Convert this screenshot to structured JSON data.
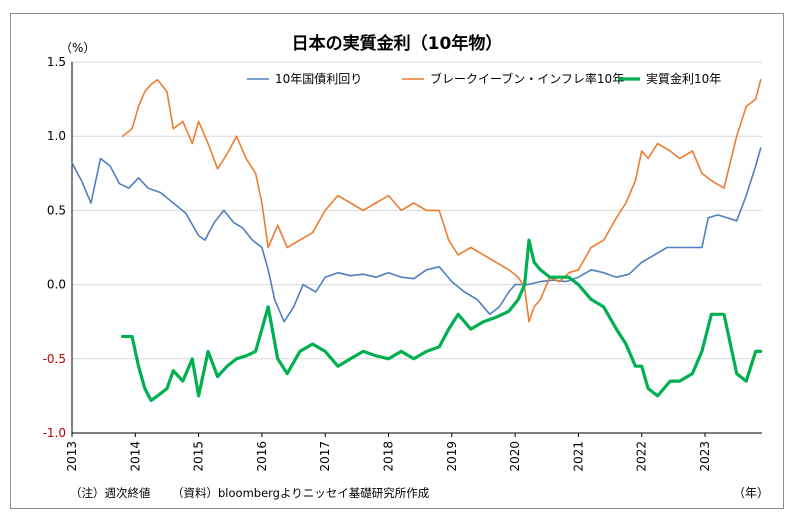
{
  "chart_data": {
    "type": "line",
    "title": "日本の実質金利（10年物）",
    "ylabel": "（%）",
    "xlabel": "（年）",
    "ylim": [
      -1.0,
      1.5
    ],
    "yticks": [
      "1.5",
      "1.0",
      "0.5",
      "0.0",
      "-0.5",
      "-1.0"
    ],
    "ytick_values": [
      1.5,
      1.0,
      0.5,
      0.0,
      -0.5,
      -1.0
    ],
    "xlim": [
      2013.0,
      2023.9
    ],
    "xticks": [
      "2013",
      "2014",
      "2015",
      "2016",
      "2017",
      "2018",
      "2019",
      "2020",
      "2021",
      "2022",
      "2023"
    ],
    "grid": "horizontal",
    "legend_position": "top",
    "series": [
      {
        "name": "10年国債利回り",
        "color": "#4f7fbf",
        "x": [
          2013.0,
          2013.15,
          2013.3,
          2013.45,
          2013.6,
          2013.75,
          2013.9,
          2014.05,
          2014.2,
          2014.4,
          2014.6,
          2014.8,
          2015.0,
          2015.1,
          2015.25,
          2015.4,
          2015.55,
          2015.7,
          2015.85,
          2016.0,
          2016.1,
          2016.2,
          2016.35,
          2016.5,
          2016.65,
          2016.85,
          2017.0,
          2017.2,
          2017.4,
          2017.6,
          2017.8,
          2018.0,
          2018.2,
          2018.4,
          2018.6,
          2018.8,
          2019.0,
          2019.2,
          2019.4,
          2019.6,
          2019.75,
          2019.9,
          2020.0,
          2020.2,
          2020.4,
          2020.6,
          2020.8,
          2021.0,
          2021.2,
          2021.4,
          2021.6,
          2021.8,
          2022.0,
          2022.2,
          2022.4,
          2022.6,
          2022.8,
          2022.95,
          2023.05,
          2023.2,
          2023.35,
          2023.5,
          2023.65,
          2023.8,
          2023.88
        ],
        "values": [
          0.82,
          0.7,
          0.55,
          0.85,
          0.8,
          0.68,
          0.65,
          0.72,
          0.65,
          0.62,
          0.55,
          0.48,
          0.33,
          0.3,
          0.42,
          0.5,
          0.42,
          0.38,
          0.3,
          0.25,
          0.1,
          -0.1,
          -0.25,
          -0.15,
          0.0,
          -0.05,
          0.05,
          0.08,
          0.06,
          0.07,
          0.05,
          0.08,
          0.05,
          0.04,
          0.1,
          0.12,
          0.02,
          -0.05,
          -0.1,
          -0.2,
          -0.15,
          -0.05,
          0.0,
          0.0,
          0.02,
          0.03,
          0.02,
          0.05,
          0.1,
          0.08,
          0.05,
          0.07,
          0.15,
          0.2,
          0.25,
          0.25,
          0.25,
          0.25,
          0.45,
          0.47,
          0.45,
          0.43,
          0.6,
          0.8,
          0.92
        ]
      },
      {
        "name": "ブレークイーブン・インフレ率10年",
        "color": "#ed7d31",
        "x": [
          2013.8,
          2013.95,
          2014.05,
          2014.15,
          2014.25,
          2014.35,
          2014.5,
          2014.6,
          2014.75,
          2014.9,
          2015.0,
          2015.15,
          2015.3,
          2015.45,
          2015.6,
          2015.75,
          2015.9,
          2016.0,
          2016.1,
          2016.25,
          2016.4,
          2016.6,
          2016.8,
          2017.0,
          2017.2,
          2017.4,
          2017.6,
          2017.8,
          2018.0,
          2018.2,
          2018.4,
          2018.6,
          2018.8,
          2018.95,
          2019.1,
          2019.3,
          2019.5,
          2019.7,
          2019.9,
          2020.05,
          2020.15,
          2020.22,
          2020.3,
          2020.4,
          2020.55,
          2020.7,
          2020.85,
          2021.0,
          2021.2,
          2021.4,
          2021.6,
          2021.75,
          2021.9,
          2022.0,
          2022.1,
          2022.25,
          2022.45,
          2022.6,
          2022.8,
          2022.95,
          2023.1,
          2023.3,
          2023.5,
          2023.65,
          2023.8,
          2023.88
        ],
        "values": [
          1.0,
          1.05,
          1.2,
          1.3,
          1.35,
          1.38,
          1.3,
          1.05,
          1.1,
          0.95,
          1.1,
          0.95,
          0.78,
          0.88,
          1.0,
          0.85,
          0.75,
          0.55,
          0.25,
          0.4,
          0.25,
          0.3,
          0.35,
          0.5,
          0.6,
          0.55,
          0.5,
          0.55,
          0.6,
          0.5,
          0.55,
          0.5,
          0.5,
          0.3,
          0.2,
          0.25,
          0.2,
          0.15,
          0.1,
          0.05,
          -0.02,
          -0.25,
          -0.15,
          -0.1,
          0.05,
          0.02,
          0.08,
          0.1,
          0.25,
          0.3,
          0.45,
          0.55,
          0.7,
          0.9,
          0.85,
          0.95,
          0.9,
          0.85,
          0.9,
          0.75,
          0.7,
          0.65,
          1.0,
          1.2,
          1.25,
          1.38
        ]
      },
      {
        "name": "実質金利10年",
        "color": "#00b050",
        "x": [
          2013.8,
          2013.95,
          2014.05,
          2014.15,
          2014.25,
          2014.35,
          2014.5,
          2014.6,
          2014.75,
          2014.9,
          2015.0,
          2015.15,
          2015.3,
          2015.45,
          2015.6,
          2015.75,
          2015.9,
          2016.0,
          2016.1,
          2016.25,
          2016.4,
          2016.6,
          2016.8,
          2017.0,
          2017.2,
          2017.4,
          2017.6,
          2017.8,
          2018.0,
          2018.2,
          2018.4,
          2018.6,
          2018.8,
          2018.95,
          2019.1,
          2019.3,
          2019.5,
          2019.7,
          2019.9,
          2020.05,
          2020.15,
          2020.22,
          2020.3,
          2020.4,
          2020.55,
          2020.7,
          2020.85,
          2021.0,
          2021.2,
          2021.4,
          2021.6,
          2021.75,
          2021.9,
          2022.0,
          2022.1,
          2022.25,
          2022.45,
          2022.6,
          2022.8,
          2022.95,
          2023.1,
          2023.3,
          2023.5,
          2023.65,
          2023.8,
          2023.88
        ],
        "values": [
          -0.35,
          -0.35,
          -0.55,
          -0.7,
          -0.78,
          -0.75,
          -0.7,
          -0.58,
          -0.65,
          -0.5,
          -0.75,
          -0.45,
          -0.62,
          -0.55,
          -0.5,
          -0.48,
          -0.45,
          -0.3,
          -0.15,
          -0.5,
          -0.6,
          -0.45,
          -0.4,
          -0.45,
          -0.55,
          -0.5,
          -0.45,
          -0.48,
          -0.5,
          -0.45,
          -0.5,
          -0.45,
          -0.42,
          -0.3,
          -0.2,
          -0.3,
          -0.25,
          -0.22,
          -0.18,
          -0.1,
          0.0,
          0.3,
          0.15,
          0.1,
          0.05,
          0.05,
          0.05,
          0.0,
          -0.1,
          -0.15,
          -0.3,
          -0.4,
          -0.55,
          -0.55,
          -0.7,
          -0.75,
          -0.65,
          -0.65,
          -0.6,
          -0.45,
          -0.2,
          -0.2,
          -0.6,
          -0.65,
          -0.45,
          -0.45
        ]
      }
    ]
  },
  "footnote_left": "（注）週次終値",
  "footnote_right": "（資料）bloombergよりニッセイ基礎研究所作成"
}
